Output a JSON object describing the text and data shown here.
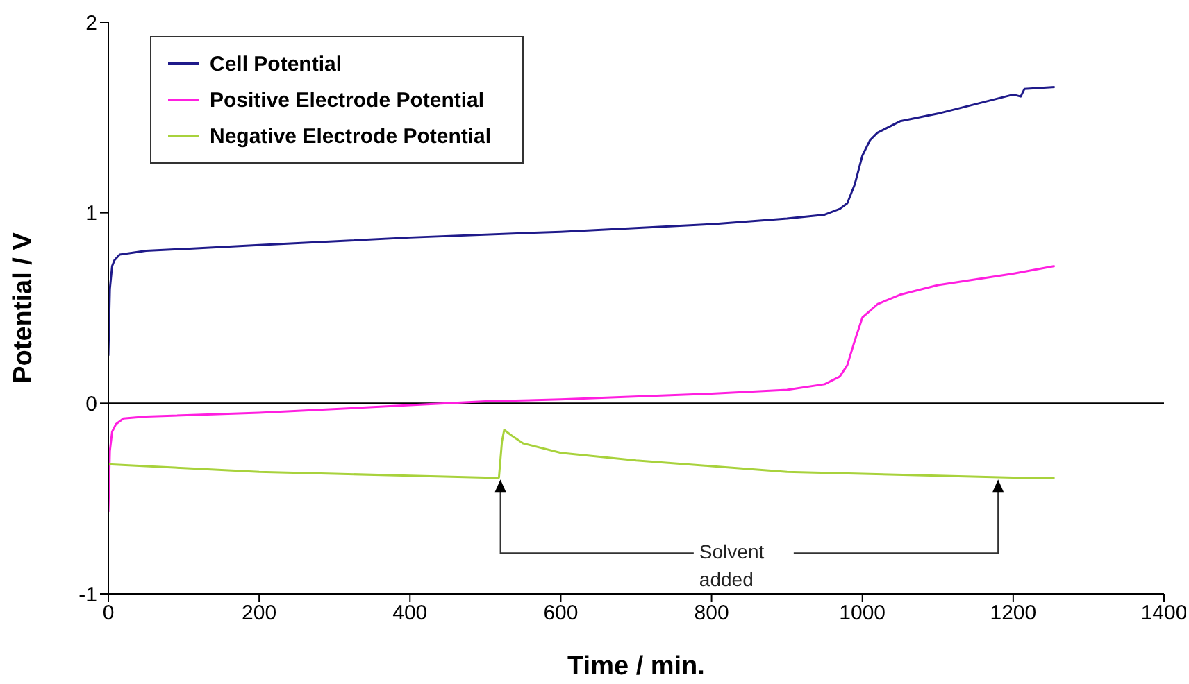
{
  "chart_data": {
    "type": "line",
    "xlabel": "Time / min.",
    "ylabel": "Potential / V",
    "xlim": [
      0,
      1400
    ],
    "xticks": [
      0,
      200,
      400,
      600,
      800,
      1000,
      1200,
      1400
    ],
    "ylim": [
      -1,
      2
    ],
    "yticks": [
      -1,
      0,
      1,
      2
    ],
    "legend": "top left",
    "marker": "none",
    "line_style": "solid",
    "series": [
      {
        "name": "Cell Potential",
        "color": "#1f1a8a",
        "x": [
          0,
          2,
          5,
          8,
          15,
          50,
          200,
          400,
          600,
          800,
          900,
          950,
          970,
          980,
          990,
          1000,
          1010,
          1020,
          1050,
          1100,
          1150,
          1200,
          1210,
          1215,
          1255
        ],
        "values": [
          0.25,
          0.6,
          0.72,
          0.75,
          0.78,
          0.8,
          0.83,
          0.87,
          0.9,
          0.94,
          0.97,
          0.99,
          1.02,
          1.05,
          1.15,
          1.3,
          1.38,
          1.42,
          1.48,
          1.52,
          1.57,
          1.62,
          1.61,
          1.65,
          1.66
        ]
      },
      {
        "name": "Positive Electrode Potential",
        "color": "#ff1fe0",
        "x": [
          0,
          2,
          5,
          10,
          20,
          50,
          200,
          400,
          500,
          600,
          800,
          900,
          950,
          970,
          980,
          990,
          1000,
          1020,
          1050,
          1100,
          1150,
          1200,
          1255
        ],
        "values": [
          -0.57,
          -0.25,
          -0.15,
          -0.11,
          -0.08,
          -0.07,
          -0.05,
          -0.01,
          0.01,
          0.02,
          0.05,
          0.07,
          0.1,
          0.14,
          0.2,
          0.33,
          0.45,
          0.52,
          0.57,
          0.62,
          0.65,
          0.68,
          0.72
        ]
      },
      {
        "name": "Negative Electrode Potential",
        "color": "#a8d23c",
        "x": [
          0,
          50,
          100,
          200,
          300,
          400,
          500,
          518,
          522,
          525,
          535,
          550,
          600,
          700,
          800,
          900,
          1000,
          1100,
          1200,
          1255
        ],
        "values": [
          -0.32,
          -0.33,
          -0.34,
          -0.36,
          -0.37,
          -0.38,
          -0.39,
          -0.39,
          -0.2,
          -0.14,
          -0.17,
          -0.21,
          -0.26,
          -0.3,
          -0.33,
          -0.36,
          -0.37,
          -0.38,
          -0.39,
          -0.39
        ]
      }
    ],
    "ref_lines": [
      {
        "axis": "y",
        "value": 0,
        "color": "#000000"
      }
    ],
    "annotations": [
      {
        "text": "Solvent added",
        "x": 520,
        "y": -0.4
      }
    ]
  }
}
